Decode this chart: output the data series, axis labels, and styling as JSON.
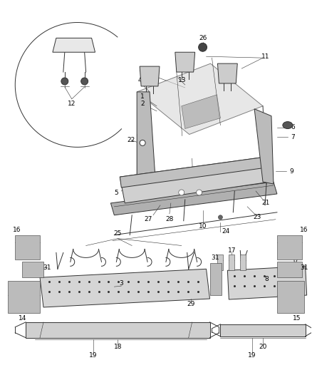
{
  "background_color": "#ffffff",
  "line_color": "#333333",
  "label_color": "#000000",
  "label_fontsize": 6.5,
  "fig_width": 4.38,
  "fig_height": 5.33,
  "dpi": 100
}
